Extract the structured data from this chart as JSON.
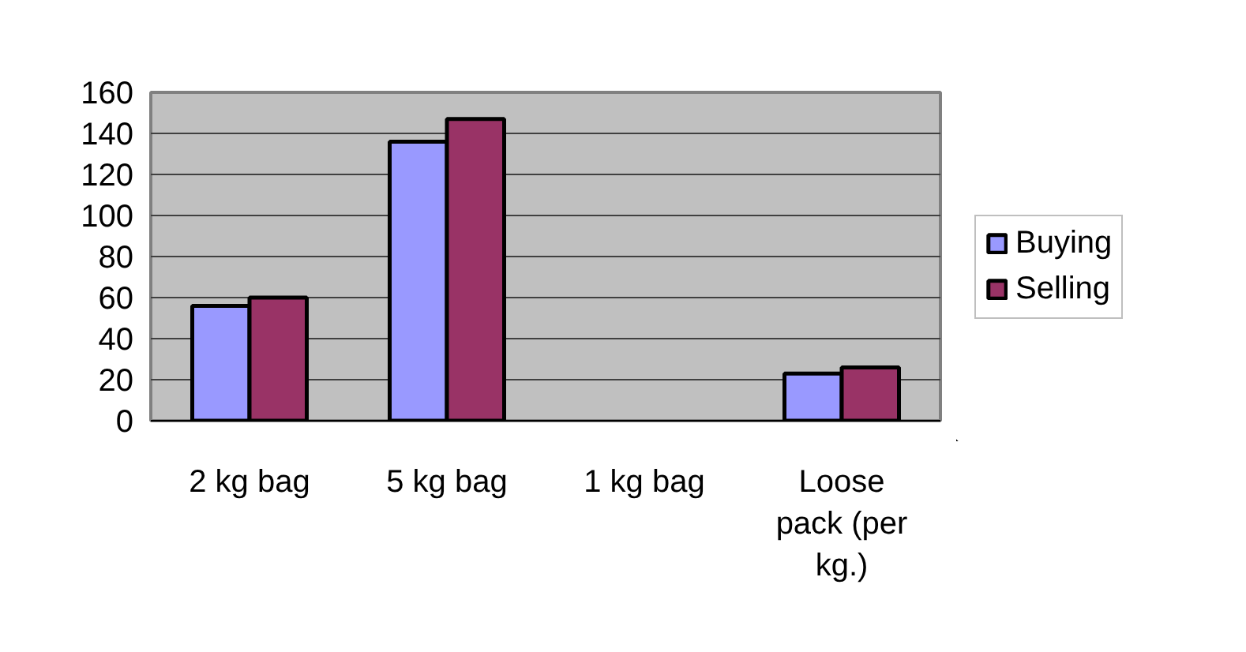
{
  "chart_data": {
    "type": "bar",
    "categories": [
      "2 kg bag",
      "5 kg bag",
      "1 kg bag",
      "Loose pack (per kg.)"
    ],
    "series": [
      {
        "name": "Buying",
        "color": "#9999ff",
        "values": [
          56,
          136,
          null,
          23
        ]
      },
      {
        "name": "Selling",
        "color": "#993366",
        "values": [
          60,
          147,
          null,
          26
        ]
      }
    ],
    "ylim": [
      0,
      160
    ],
    "yticks": [
      0,
      20,
      40,
      60,
      80,
      100,
      120,
      140,
      160
    ],
    "grid": "y",
    "legend": "right"
  }
}
